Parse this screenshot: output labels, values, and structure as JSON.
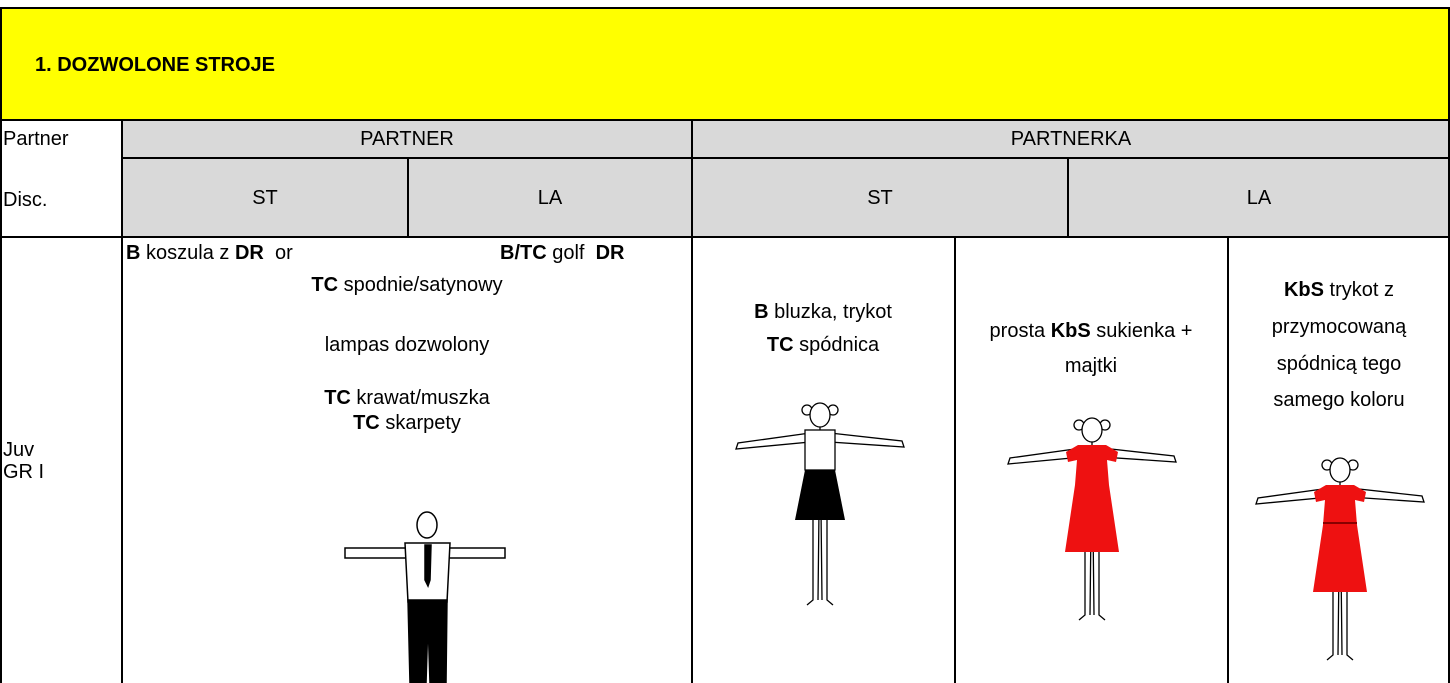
{
  "header": {
    "title": "1. DOZWOLONE STROJE"
  },
  "table": {
    "row_labels": [
      "Partner",
      "Disc.",
      "Juv",
      "GR I"
    ],
    "groups": [
      "PARTNER",
      "PARTNERKA"
    ],
    "disciplines": [
      "ST",
      "LA",
      "ST",
      "LA"
    ],
    "cells": [
      {
        "lines": [
          [
            {
              "text": "B",
              "bold": true
            },
            {
              "text": " koszula z ",
              "bold": false
            },
            {
              "text": "DR",
              "bold": true
            },
            {
              "text": "  or",
              "bold": false
            }
          ],
          [
            {
              "text": "B/TC",
              "bold": true
            },
            {
              "text": " golf  ",
              "bold": false
            },
            {
              "text": "DR",
              "bold": true
            }
          ],
          [
            {
              "text": "TC",
              "bold": true
            },
            {
              "text": " spodnie/satynowy",
              "bold": false
            }
          ],
          [
            {
              "text": "lampas dozwolony",
              "bold": false
            }
          ],
          [
            {
              "text": "TC",
              "bold": true
            },
            {
              "text": " krawat/muszka",
              "bold": false
            }
          ],
          [
            {
              "text": "TC",
              "bold": true
            },
            {
              "text": " skarpety",
              "bold": false
            }
          ]
        ]
      },
      {
        "lines": [
          [
            {
              "text": "B",
              "bold": true
            },
            {
              "text": " bluzka, trykot",
              "bold": false
            }
          ],
          [
            {
              "text": "TC",
              "bold": true
            },
            {
              "text": " spódnica",
              "bold": false
            }
          ]
        ]
      },
      {
        "lines": [
          [
            {
              "text": "prosta ",
              "bold": false
            },
            {
              "text": "KbS",
              "bold": true
            },
            {
              "text": " sukienka +",
              "bold": false
            }
          ],
          [
            {
              "text": "majtki",
              "bold": false
            }
          ]
        ]
      },
      {
        "lines": [
          [
            {
              "text": "KbS",
              "bold": true
            },
            {
              "text": " trykot z",
              "bold": false
            }
          ],
          [
            {
              "text": "przymocowaną",
              "bold": false
            }
          ],
          [
            {
              "text": "spódnicą tego",
              "bold": false
            }
          ],
          [
            {
              "text": "samego koloru",
              "bold": false
            }
          ]
        ]
      }
    ]
  }
}
